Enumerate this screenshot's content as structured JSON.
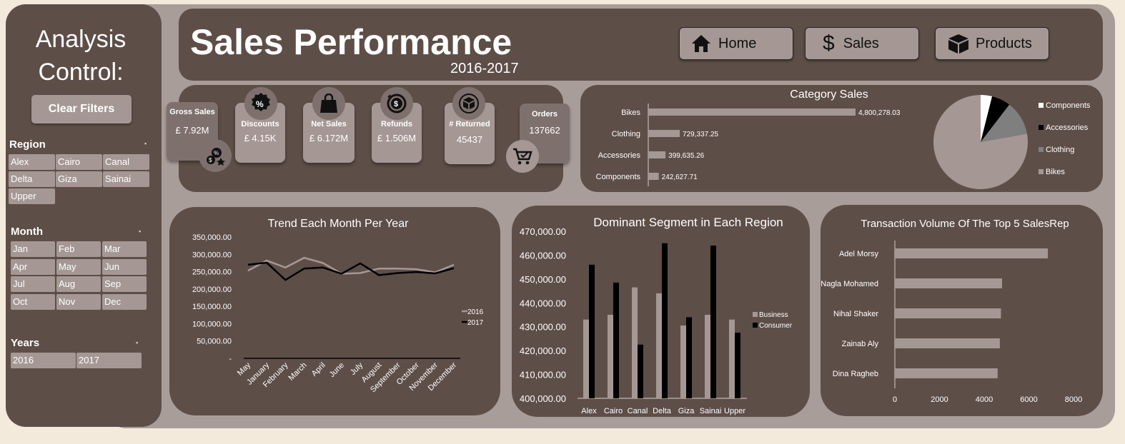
{
  "sidebar": {
    "title_line1": "Analysis",
    "title_line2": "Control:",
    "clear_filters": "Clear Filters",
    "region": {
      "label": "Region",
      "items": [
        "Alex",
        "Cairo",
        "Canal",
        "Delta",
        "Giza",
        "Sainai",
        "Upper"
      ]
    },
    "month": {
      "label": "Month",
      "items": [
        "Jan",
        "Feb",
        "Mar",
        "Apr",
        "May",
        "Jun",
        "Jul",
        "Aug",
        "Sep",
        "Oct",
        "Nov",
        "Dec"
      ]
    },
    "years": {
      "label": "Years",
      "items": [
        "2016",
        "2017"
      ]
    }
  },
  "header": {
    "title": "Sales Performance",
    "subtitle": "2016-2017",
    "nav": {
      "home": "Home",
      "sales": "Sales",
      "products": "Products"
    }
  },
  "kpis": {
    "gross_sales": {
      "label": "Gross Sales",
      "value": "£ 7.92M"
    },
    "discounts": {
      "label": "Discounts",
      "value": "£ 4.15K"
    },
    "net_sales": {
      "label": "Net Sales",
      "value": "£ 6.172M"
    },
    "refunds": {
      "label": "Refunds",
      "value": "£ 1.506M"
    },
    "returned": {
      "label": "# Returned",
      "value": "45437"
    },
    "orders": {
      "label": "Orders",
      "value": "137662"
    }
  },
  "colors": {
    "panel": "#5e4e48",
    "frame": "#a99d9a",
    "chip": "#a59894",
    "bar": "#a59894",
    "page": "#f3eadb"
  },
  "chart_data": [
    {
      "type": "bar",
      "title": "Category Sales",
      "orientation": "horizontal",
      "categories": [
        "Bikes",
        "Clothing",
        "Accessories",
        "Components"
      ],
      "values": [
        4800278.03,
        729337.25,
        399635.26,
        242627.71
      ],
      "value_labels": [
        "4,800,278.03",
        "729,337.25",
        "399,635.26",
        "242,627.71"
      ]
    },
    {
      "type": "pie",
      "legend": [
        "Components",
        "Accessories",
        "Clothing",
        "Bikes"
      ],
      "values": [
        242627.71,
        399635.26,
        729337.25,
        4800278.03
      ],
      "colors": [
        "#ffffff",
        "#000000",
        "#7f7f7f",
        "#a59894"
      ],
      "legend_position": "right"
    },
    {
      "type": "line",
      "title": "Trend Each Month Per Year",
      "categories": [
        "May",
        "January",
        "February",
        "March",
        "April",
        "June",
        "July",
        "August",
        "September",
        "October",
        "November",
        "December"
      ],
      "series": [
        {
          "name": "2016",
          "color": "#a59894",
          "values": [
            253000,
            282000,
            262000,
            290000,
            275000,
            244000,
            246000,
            259000,
            259000,
            257000,
            248000,
            270000
          ]
        },
        {
          "name": "2017",
          "color": "#000000",
          "values": [
            270000,
            276000,
            226000,
            259000,
            262000,
            244000,
            274000,
            240000,
            246000,
            249000,
            245000,
            260000
          ]
        }
      ],
      "y_ticks": [
        "-",
        "50,000.00",
        "100,000.00",
        "150,000.00",
        "200,000.00",
        "250,000.00",
        "300,000.00",
        "350,000.00"
      ],
      "ylim": [
        0,
        350000
      ],
      "legend_position": "right"
    },
    {
      "type": "bar",
      "title": "Dominant Segment in Each Region",
      "categories": [
        "Alex",
        "Cairo",
        "Canal",
        "Delta",
        "Giza",
        "Sainai",
        "Upper"
      ],
      "series": [
        {
          "name": "Business",
          "color": "#a59894",
          "values": [
            433000,
            435000,
            446500,
            444000,
            430500,
            435000,
            433000
          ]
        },
        {
          "name": "Consumer",
          "color": "#000000",
          "values": [
            456000,
            448500,
            422500,
            465000,
            434000,
            464000,
            427500
          ]
        }
      ],
      "y_ticks": [
        "400,000.00",
        "410,000.00",
        "420,000.00",
        "430,000.00",
        "440,000.00",
        "450,000.00",
        "460,000.00",
        "470,000.00"
      ],
      "ylim": [
        400000,
        470000
      ],
      "legend_position": "right"
    },
    {
      "type": "bar",
      "title": "Transaction Volume Of The Top 5 SalesRep",
      "orientation": "horizontal",
      "categories": [
        "Adel Morsy",
        "Nagla Mohamed",
        "Nihal Shaker",
        "Zainab Aly",
        "Dina Ragheb"
      ],
      "values": [
        6850,
        4800,
        4750,
        4700,
        4600
      ],
      "x_ticks": [
        "0",
        "2000",
        "4000",
        "6000",
        "8000"
      ],
      "xlim": [
        0,
        8000
      ]
    }
  ]
}
